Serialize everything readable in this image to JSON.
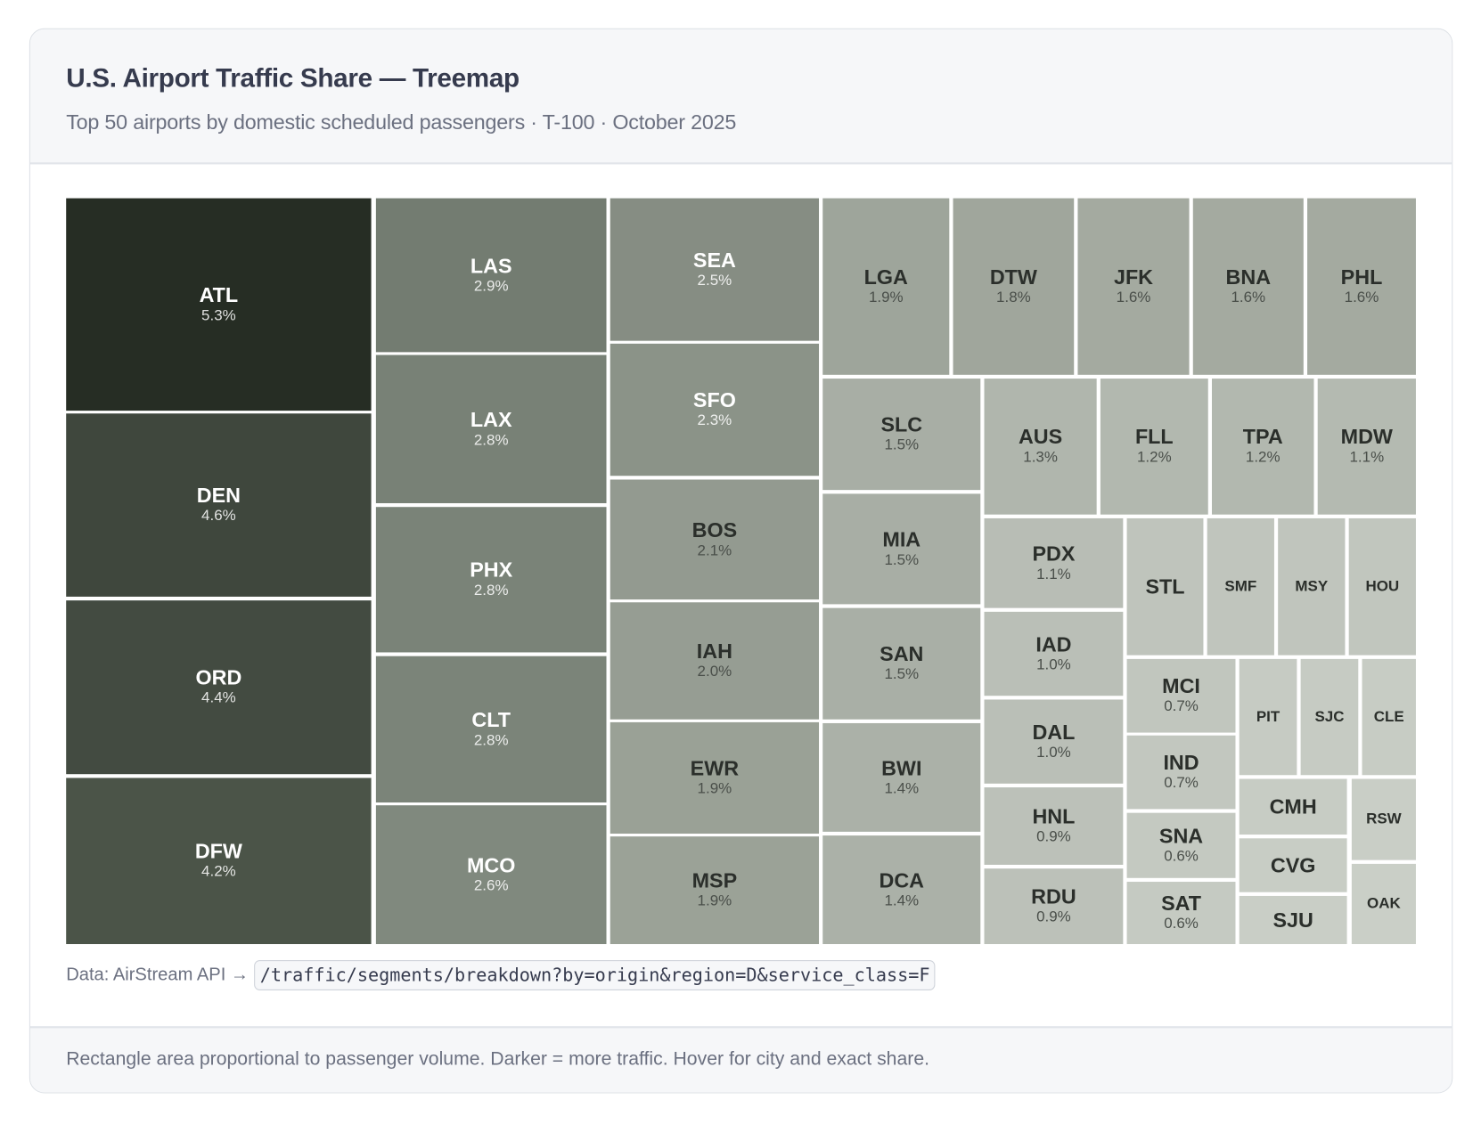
{
  "header": {
    "title": "U.S. Airport Traffic Share — Treemap",
    "subtitle": "Top 50 airports by domestic scheduled passengers · T-100 · October 2025"
  },
  "source": {
    "label": "Data: AirStream API →",
    "endpoint": "/traffic/segments/breakdown?by=origin&region=D&service_class=F"
  },
  "footer": {
    "note": "Rectangle area proportional to passenger volume. Darker = more traffic. Hover for city and exact share."
  },
  "chart_data": {
    "type": "treemap",
    "items": [
      {
        "code": "ATL",
        "share": "5.3%",
        "fill": "#262d24"
      },
      {
        "code": "DEN",
        "share": "4.6%",
        "fill": "#3f473d"
      },
      {
        "code": "ORD",
        "share": "4.4%",
        "fill": "#434b41"
      },
      {
        "code": "DFW",
        "share": "4.2%",
        "fill": "#4b5448"
      },
      {
        "code": "LAS",
        "share": "2.9%",
        "fill": "#737c71"
      },
      {
        "code": "LAX",
        "share": "2.8%",
        "fill": "#788176"
      },
      {
        "code": "PHX",
        "share": "2.8%",
        "fill": "#7a8378"
      },
      {
        "code": "CLT",
        "share": "2.8%",
        "fill": "#7b8479"
      },
      {
        "code": "MCO",
        "share": "2.6%",
        "fill": "#80897e"
      },
      {
        "code": "SEA",
        "share": "2.5%",
        "fill": "#868d83"
      },
      {
        "code": "SFO",
        "share": "2.3%",
        "fill": "#8b9388"
      },
      {
        "code": "BOS",
        "share": "2.1%",
        "fill": "#939a90"
      },
      {
        "code": "IAH",
        "share": "2.0%",
        "fill": "#969d93"
      },
      {
        "code": "EWR",
        "share": "1.9%",
        "fill": "#9aa196"
      },
      {
        "code": "MSP",
        "share": "1.9%",
        "fill": "#9ba297"
      },
      {
        "code": "LGA",
        "share": "1.9%",
        "fill": "#9ea59b"
      },
      {
        "code": "DTW",
        "share": "1.8%",
        "fill": "#a0a69c"
      },
      {
        "code": "JFK",
        "share": "1.6%",
        "fill": "#a4aaa0"
      },
      {
        "code": "BNA",
        "share": "1.6%",
        "fill": "#a4aaa0"
      },
      {
        "code": "PHL",
        "share": "1.6%",
        "fill": "#a4aaa0"
      },
      {
        "code": "SLC",
        "share": "1.5%",
        "fill": "#a8aea5"
      },
      {
        "code": "MIA",
        "share": "1.5%",
        "fill": "#a8aea5"
      },
      {
        "code": "SAN",
        "share": "1.5%",
        "fill": "#a9afa6"
      },
      {
        "code": "BWI",
        "share": "1.4%",
        "fill": "#abb1a8"
      },
      {
        "code": "DCA",
        "share": "1.4%",
        "fill": "#abb1a8"
      },
      {
        "code": "AUS",
        "share": "1.3%",
        "fill": "#b0b6ad"
      },
      {
        "code": "FLL",
        "share": "1.2%",
        "fill": "#b2b8af"
      },
      {
        "code": "TPA",
        "share": "1.2%",
        "fill": "#b2b8af"
      },
      {
        "code": "MDW",
        "share": "1.1%",
        "fill": "#b4bab1"
      },
      {
        "code": "PDX",
        "share": "1.1%",
        "fill": "#b8bdb5"
      },
      {
        "code": "IAD",
        "share": "1.0%",
        "fill": "#babfb7"
      },
      {
        "code": "DAL",
        "share": "1.0%",
        "fill": "#babfb7"
      },
      {
        "code": "HNL",
        "share": "0.9%",
        "fill": "#bcc1b9"
      },
      {
        "code": "RDU",
        "share": "0.9%",
        "fill": "#bcc1b9"
      },
      {
        "code": "STL",
        "fill": "#bfc4bc"
      },
      {
        "code": "SMF",
        "fill": "#c0c5bd"
      },
      {
        "code": "MSY",
        "fill": "#c0c5bd"
      },
      {
        "code": "HOU",
        "fill": "#c1c6be"
      },
      {
        "code": "MCI",
        "share": "0.7%",
        "fill": "#c1c6be"
      },
      {
        "code": "IND",
        "share": "0.7%",
        "fill": "#c2c7bf"
      },
      {
        "code": "SNA",
        "share": "0.6%",
        "fill": "#c4c9c1"
      },
      {
        "code": "SAT",
        "share": "0.6%",
        "fill": "#c5cac2"
      },
      {
        "code": "PIT",
        "fill": "#c6cbc3"
      },
      {
        "code": "SJC",
        "fill": "#c6cbc3"
      },
      {
        "code": "CLE",
        "fill": "#c7ccc4"
      },
      {
        "code": "CMH",
        "fill": "#c7ccc4"
      },
      {
        "code": "CVG",
        "fill": "#c8cdc5"
      },
      {
        "code": "SJU",
        "fill": "#c9cec6"
      },
      {
        "code": "RSW",
        "fill": "#c9cec6"
      },
      {
        "code": "OAK",
        "fill": "#cacfc7"
      }
    ]
  }
}
